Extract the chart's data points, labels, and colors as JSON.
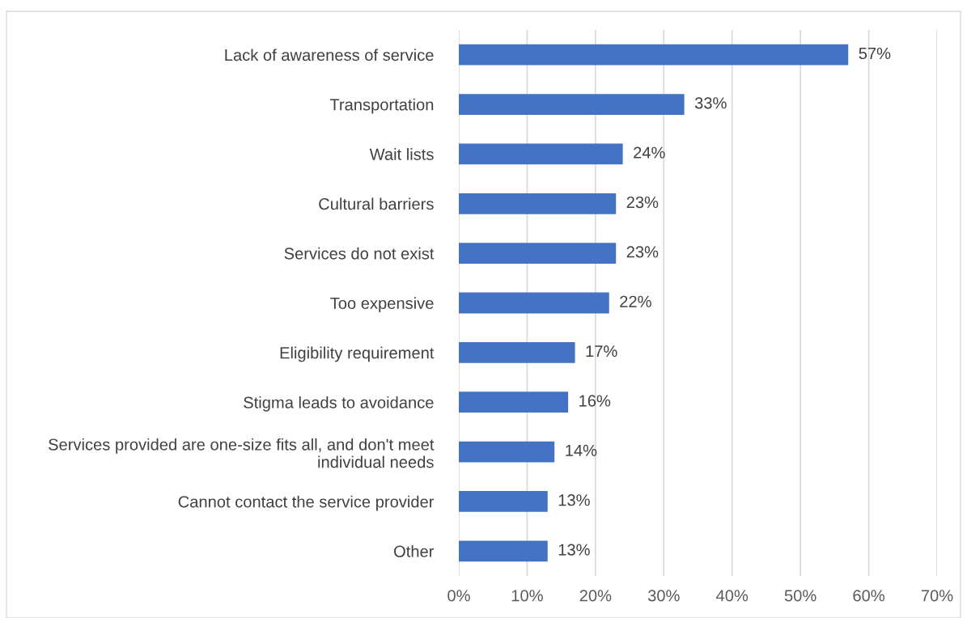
{
  "chart_data": {
    "type": "bar",
    "orientation": "horizontal",
    "categories": [
      "Lack of awareness of service",
      "Transportation",
      "Wait lists",
      "Cultural barriers",
      "Services do not exist",
      "Too expensive",
      "Eligibility requirement",
      "Stigma leads to avoidance",
      "Services provided are one-size fits all, and don't meet\nindividual needs",
      "Cannot contact the service provider",
      "Other"
    ],
    "values": [
      57,
      33,
      24,
      23,
      23,
      22,
      17,
      16,
      14,
      13,
      13
    ],
    "value_labels": [
      "57%",
      "33%",
      "24%",
      "23%",
      "23%",
      "22%",
      "17%",
      "16%",
      "14%",
      "13%",
      "13%"
    ],
    "color": "#4472c4",
    "xlim": [
      0,
      70
    ],
    "xticks": [
      {
        "value": 0,
        "label": "0%"
      },
      {
        "value": 10,
        "label": "10%"
      },
      {
        "value": 20,
        "label": "20%"
      },
      {
        "value": 30,
        "label": "30%"
      },
      {
        "value": 40,
        "label": "40%"
      },
      {
        "value": 50,
        "label": "50%"
      },
      {
        "value": 60,
        "label": "60%"
      },
      {
        "value": 70,
        "label": "70%"
      }
    ],
    "grid": "x",
    "legend": false
  }
}
